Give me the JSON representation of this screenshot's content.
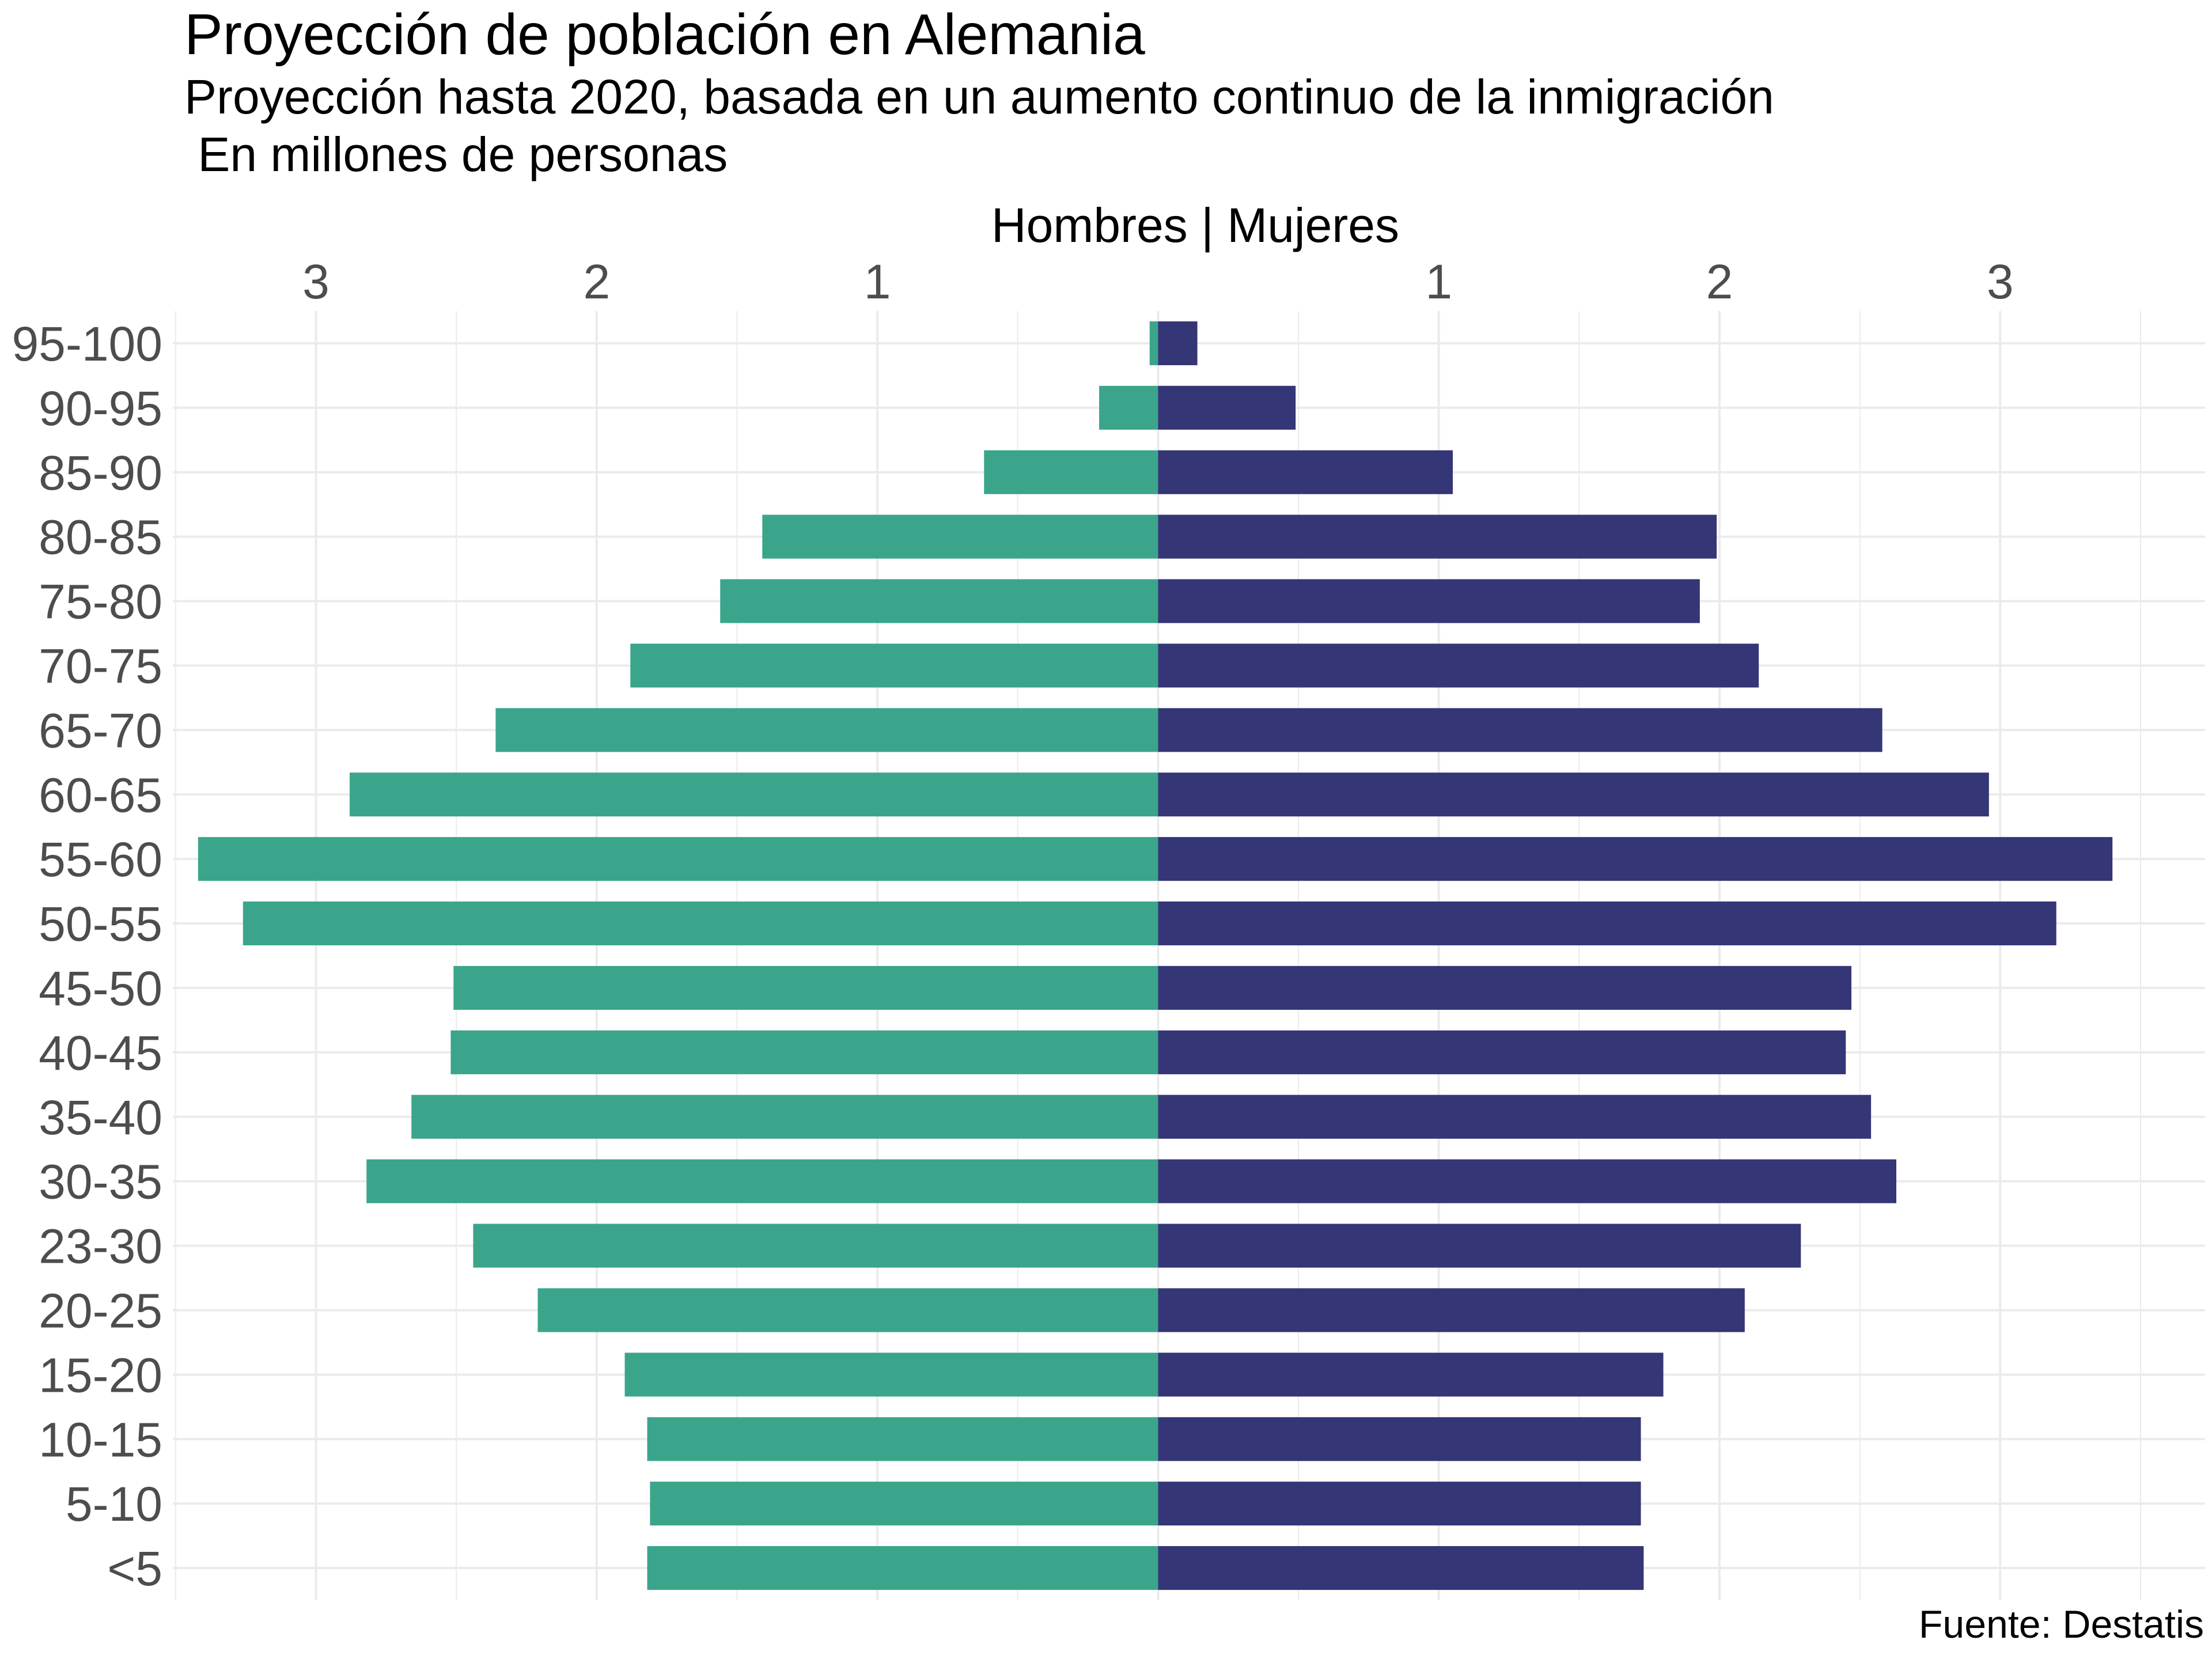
{
  "title": "Proyección de población en Alemania",
  "subtitle": "Proyección hasta 2020, basada en un aumento continuo de la inmigración\n En millones de personas",
  "caption": "Fuente: Destatis",
  "colors": {
    "hombres": "#3BA58B",
    "mujeres": "#353676",
    "grid": "#ebebeb",
    "background": "#ffffff"
  },
  "chart_data": {
    "type": "bar",
    "orientation": "horizontal",
    "layout": "population-pyramid",
    "x_axis_title": "Hombres | Mujeres",
    "x_ticks": [
      {
        "value": -3,
        "label": "3"
      },
      {
        "value": -2,
        "label": "2"
      },
      {
        "value": -1,
        "label": "1"
      },
      {
        "value": 1,
        "label": "1"
      },
      {
        "value": 2,
        "label": "2"
      },
      {
        "value": 3,
        "label": "3"
      }
    ],
    "xlim": [
      -3.51,
      3.73
    ],
    "grid": true,
    "categories": [
      "95-100",
      "90-95",
      "85-90",
      "80-85",
      "75-80",
      "70-75",
      "65-70",
      "60-65",
      "55-60",
      "50-55",
      "45-50",
      "40-45",
      "35-40",
      "30-35",
      "23-30",
      "20-25",
      "15-20",
      "10-15",
      "5-10",
      "<5"
    ],
    "series": [
      {
        "values": [
          0.03,
          0.21,
          0.62,
          1.41,
          1.56,
          1.88,
          2.36,
          2.88,
          3.42,
          3.26,
          2.51,
          2.52,
          2.66,
          2.82,
          2.44,
          2.21,
          1.9,
          1.82,
          1.81,
          1.82
        ]
      },
      {
        "values": [
          0.14,
          0.49,
          1.05,
          1.99,
          1.93,
          2.14,
          2.58,
          2.96,
          3.4,
          3.2,
          2.47,
          2.45,
          2.54,
          2.63,
          2.29,
          2.09,
          1.8,
          1.72,
          1.72,
          1.73
        ]
      }
    ]
  }
}
